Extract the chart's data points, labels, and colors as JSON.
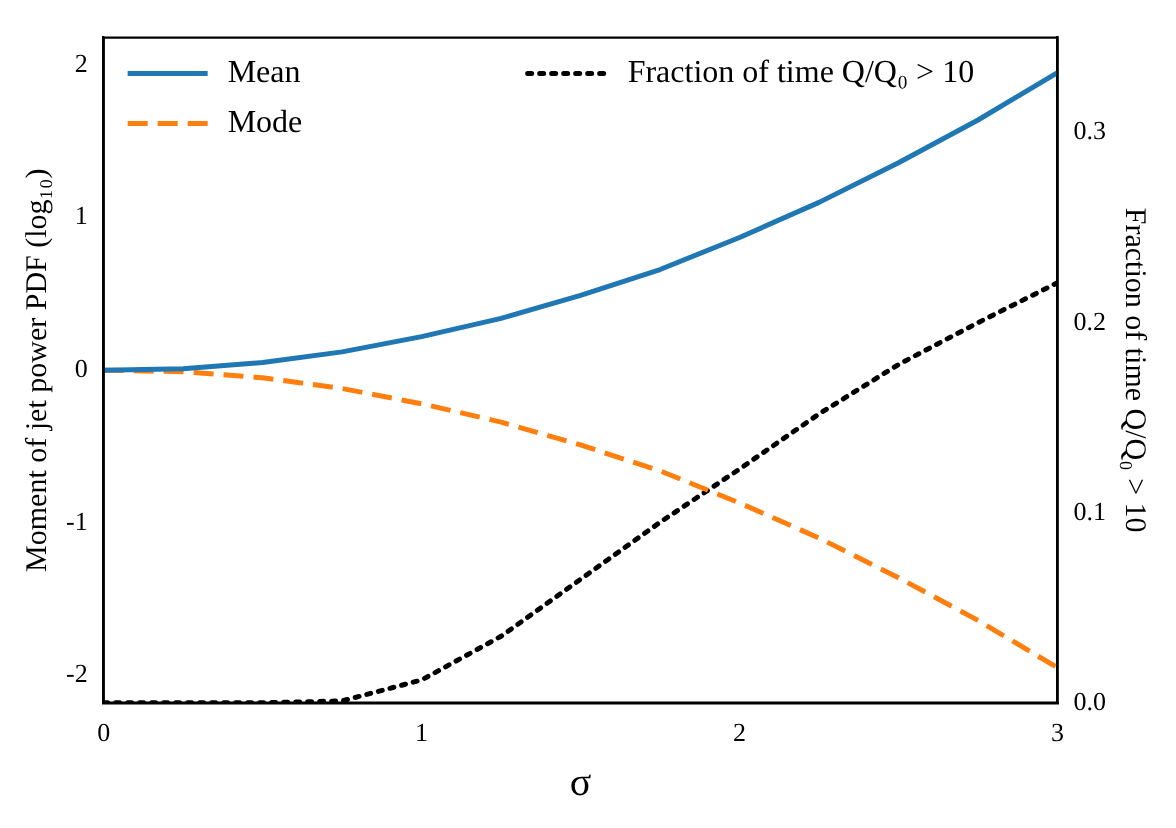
{
  "chart_data": {
    "type": "line",
    "xlabel": "σ",
    "ylabel": "Moment of jet power PDF (log₁₀)",
    "y2label": "Fraction of time Q/Q₀ > 10",
    "x": [
      0,
      0.25,
      0.5,
      0.75,
      1,
      1.25,
      1.5,
      1.75,
      2,
      2.25,
      2.5,
      2.75,
      3
    ],
    "series": [
      {
        "name": "Mean",
        "color": "#1f77b4",
        "line_style": "solid",
        "values": [
          0,
          0.01,
          0.05,
          0.12,
          0.22,
          0.34,
          0.49,
          0.66,
          0.87,
          1.1,
          1.36,
          1.64,
          1.95
        ]
      },
      {
        "name": "Mode",
        "color": "#ff7f0e",
        "line_style": "dashed",
        "values": [
          0,
          -0.01,
          -0.05,
          -0.12,
          -0.22,
          -0.34,
          -0.49,
          -0.66,
          -0.87,
          -1.1,
          -1.36,
          -1.64,
          -1.95
        ]
      },
      {
        "name": "Fraction of time Q/Q₀ > 10",
        "color": "#000000",
        "line_style": "dotted",
        "axis": "y2",
        "values": [
          0,
          0,
          0,
          0.001,
          0.012,
          0.035,
          0.065,
          0.095,
          0.123,
          0.152,
          0.178,
          0.2,
          0.221
        ]
      }
    ],
    "xlim": [
      0,
      3
    ],
    "xticks": [
      0,
      1,
      2,
      3
    ],
    "ylim": [
      -2.18,
      2.18
    ],
    "yticks": [
      -2,
      -1,
      0,
      1,
      2
    ],
    "y2lim": [
      0,
      0.35
    ],
    "y2ticks": [
      {
        "value": 0,
        "label": "0.0"
      },
      {
        "value": 0.1,
        "label": "0.1"
      },
      {
        "value": 0.2,
        "label": "0.2"
      },
      {
        "value": 0.3,
        "label": "0.3"
      }
    ],
    "legend": "top left",
    "marker": "none",
    "grid": false
  }
}
